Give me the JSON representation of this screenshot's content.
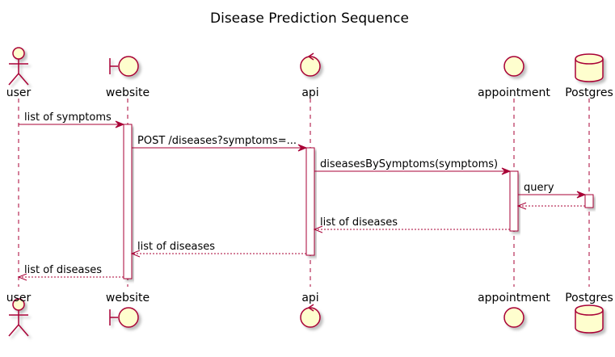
{
  "title": "Disease Prediction Sequence",
  "colors": {
    "stroke": "#A80036",
    "fill": "#FEFECE",
    "text": "#000000",
    "background": "#FFFFFF"
  },
  "participants": [
    {
      "id": "user",
      "label": "user",
      "kind": "actor",
      "icon": "actor-icon"
    },
    {
      "id": "website",
      "label": "website",
      "kind": "boundary",
      "icon": "boundary-icon"
    },
    {
      "id": "api",
      "label": "api",
      "kind": "control",
      "icon": "control-icon"
    },
    {
      "id": "appointment",
      "label": "appointment",
      "kind": "entity",
      "icon": "entity-icon"
    },
    {
      "id": "postgres",
      "label": "Postgres",
      "kind": "database",
      "icon": "database-icon"
    }
  ],
  "messages": [
    {
      "from": "user",
      "to": "website",
      "label": "list of symptoms",
      "style": "solid"
    },
    {
      "from": "website",
      "to": "api",
      "label": "POST /diseases?symptoms=...",
      "style": "solid"
    },
    {
      "from": "api",
      "to": "appointment",
      "label": "diseasesBySymptoms(symptoms)",
      "style": "solid"
    },
    {
      "from": "appointment",
      "to": "postgres",
      "label": "query",
      "style": "solid"
    },
    {
      "from": "postgres",
      "to": "appointment",
      "label": "",
      "style": "dashed"
    },
    {
      "from": "appointment",
      "to": "api",
      "label": "list of diseases",
      "style": "dashed"
    },
    {
      "from": "api",
      "to": "website",
      "label": "list of diseases",
      "style": "dashed"
    },
    {
      "from": "website",
      "to": "user",
      "label": "list of diseases",
      "style": "dashed"
    }
  ],
  "activations": [
    {
      "participant": "website",
      "from_message": 0,
      "to_message": 7
    },
    {
      "participant": "api",
      "from_message": 1,
      "to_message": 6
    },
    {
      "participant": "appointment",
      "from_message": 2,
      "to_message": 5
    },
    {
      "participant": "postgres",
      "from_message": 3,
      "to_message": 4
    }
  ]
}
